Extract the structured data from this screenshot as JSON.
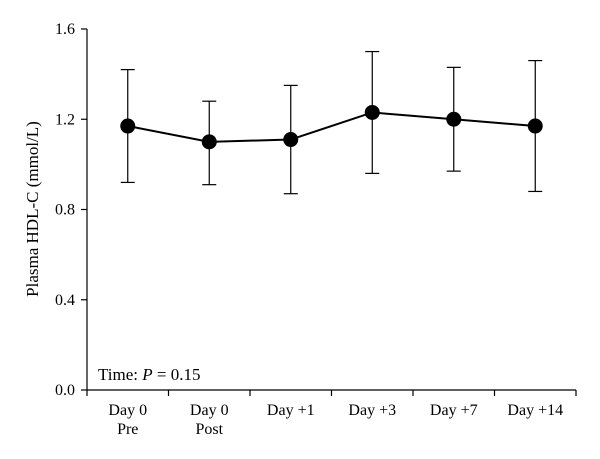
{
  "chart_data": {
    "type": "line",
    "categories": [
      [
        "Day 0",
        "Pre"
      ],
      [
        "Day 0",
        "Post"
      ],
      [
        "Day +1"
      ],
      [
        "Day +3"
      ],
      [
        "Day +7"
      ],
      [
        "Day +14"
      ]
    ],
    "values": [
      1.17,
      1.1,
      1.11,
      1.23,
      1.2,
      1.17
    ],
    "error_low": [
      0.92,
      0.91,
      0.87,
      0.96,
      0.97,
      0.88
    ],
    "error_high": [
      1.42,
      1.28,
      1.35,
      1.5,
      1.43,
      1.46
    ],
    "ylabel": "Plasma HDL-C (mmol/L)",
    "xlabel": "",
    "ylim": [
      0.0,
      1.6
    ],
    "yticks": [
      "0.0",
      "0.4",
      "0.8",
      "1.2",
      "1.6"
    ],
    "ytick_values": [
      0.0,
      0.4,
      0.8,
      1.2,
      1.6
    ],
    "annotation": {
      "prefix": "Time: ",
      "italic": "P",
      "suffix": " = 0.15"
    },
    "grid": false,
    "line_color": "#000000",
    "marker_color": "#000000"
  }
}
